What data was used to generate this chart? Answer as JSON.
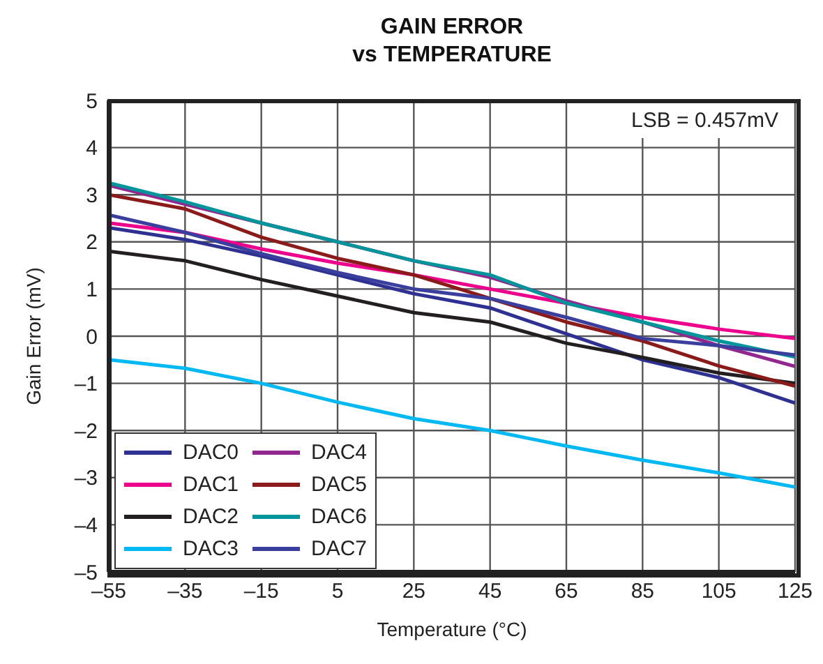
{
  "chart_data": {
    "type": "line",
    "title": "GAIN ERROR\nvs TEMPERATURE",
    "xlabel": "Temperature (°C)",
    "ylabel": "Gain Error (mV)",
    "annotations": [
      "LSB = 0.457mV"
    ],
    "x": [
      -55,
      -35,
      -15,
      5,
      25,
      45,
      65,
      85,
      105,
      125
    ],
    "series": [
      {
        "name": "DAC0",
        "color": "#2e3192",
        "values": [
          2.3,
          2.05,
          1.7,
          1.3,
          0.9,
          0.6,
          0.05,
          -0.5,
          -0.88,
          -1.42
        ]
      },
      {
        "name": "DAC1",
        "color": "#ec008c",
        "values": [
          2.4,
          2.2,
          1.85,
          1.55,
          1.3,
          1.0,
          0.7,
          0.4,
          0.15,
          -0.05
        ]
      },
      {
        "name": "DAC2",
        "color": "#231f20",
        "values": [
          1.8,
          1.6,
          1.2,
          0.85,
          0.5,
          0.3,
          -0.15,
          -0.45,
          -0.78,
          -1.0
        ]
      },
      {
        "name": "DAC3",
        "color": "#00b9f2",
        "values": [
          -0.5,
          -0.68,
          -1.0,
          -1.4,
          -1.75,
          -2.0,
          -2.33,
          -2.63,
          -2.9,
          -3.2
        ]
      },
      {
        "name": "DAC4",
        "color": "#92278f",
        "values": [
          3.2,
          2.8,
          2.4,
          2.0,
          1.6,
          1.25,
          0.75,
          0.3,
          -0.2,
          -0.64
        ]
      },
      {
        "name": "DAC5",
        "color": "#8b1a1a",
        "values": [
          3.0,
          2.7,
          2.1,
          1.65,
          1.3,
          0.8,
          0.3,
          -0.1,
          -0.63,
          -1.06
        ]
      },
      {
        "name": "DAC6",
        "color": "#00959b",
        "values": [
          3.25,
          2.85,
          2.4,
          2.0,
          1.6,
          1.3,
          0.7,
          0.3,
          -0.1,
          -0.44
        ]
      },
      {
        "name": "DAC7",
        "color": "#3a3f9e",
        "values": [
          2.57,
          2.2,
          1.75,
          1.35,
          1.0,
          0.8,
          0.4,
          -0.05,
          -0.2,
          -0.4
        ]
      }
    ],
    "xlim": [
      -55,
      125
    ],
    "xticks": [
      {
        "value": -55,
        "label": "–55"
      },
      {
        "value": -35,
        "label": "–35"
      },
      {
        "value": -15,
        "label": "–15"
      },
      5,
      25,
      45,
      65,
      85,
      105,
      125
    ],
    "ylim": [
      -5,
      5
    ],
    "yticks": [
      {
        "value": -5,
        "label": "–5"
      },
      {
        "value": -4,
        "label": "–4"
      },
      {
        "value": -3,
        "label": "–3"
      },
      {
        "value": -2,
        "label": "–2"
      },
      {
        "value": -1,
        "label": "–1"
      },
      0,
      1,
      2,
      3,
      4,
      5
    ],
    "grid": true,
    "legend": "bottom left",
    "marker": "none",
    "line_style": "solid"
  }
}
